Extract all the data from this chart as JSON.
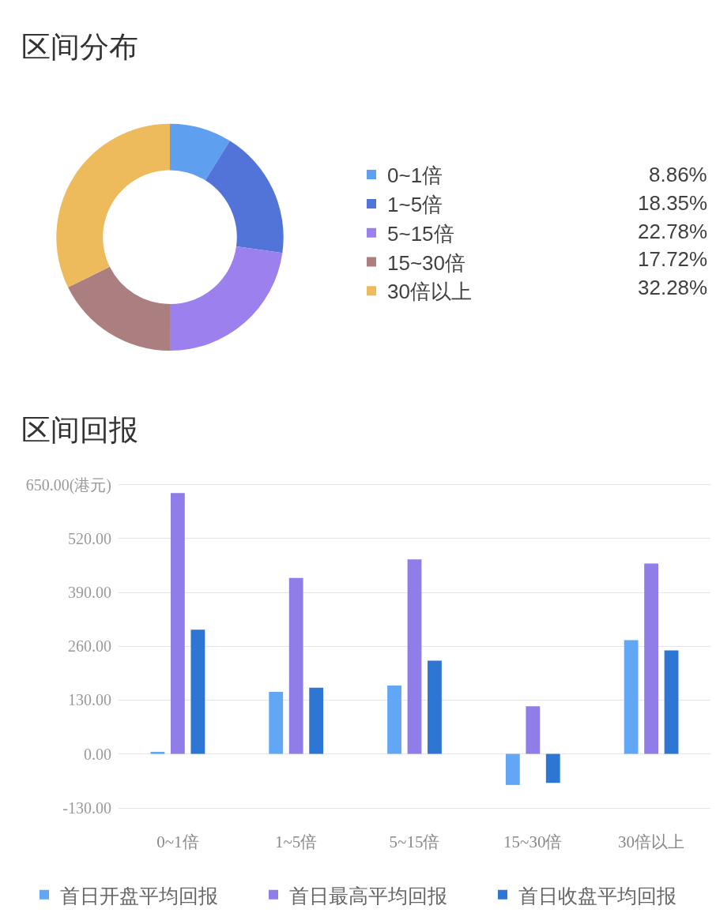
{
  "chart_data": [
    {
      "type": "donut",
      "title": "区间分布",
      "categories": [
        "0~1倍",
        "1~5倍",
        "5~15倍",
        "15~30倍",
        "30倍以上"
      ],
      "values": [
        8.86,
        18.35,
        22.78,
        17.72,
        32.28
      ],
      "colors": [
        "#5e9ff0",
        "#5274d9",
        "#9b80ee",
        "#ab7f7f",
        "#edbb5c"
      ],
      "value_labels": [
        "8.86%",
        "18.35%",
        "22.78%",
        "17.72%",
        "32.28%"
      ],
      "legend": "right"
    },
    {
      "type": "bar",
      "title": "区间回报",
      "categories": [
        "0~1倍",
        "1~5倍",
        "5~15倍",
        "15~30倍",
        "30倍以上"
      ],
      "series": [
        {
          "name": "首日开盘平均回报",
          "color": "#62a7f6",
          "values": [
            5,
            150,
            165,
            -75,
            275
          ]
        },
        {
          "name": "首日最高平均回报",
          "color": "#917de8",
          "values": [
            630,
            425,
            470,
            115,
            460
          ]
        },
        {
          "name": "首日收盘平均回报",
          "color": "#2e76d4",
          "values": [
            300,
            160,
            225,
            -70,
            250
          ]
        }
      ],
      "ylim": [
        -130,
        650
      ],
      "yticks": [
        {
          "value": -130,
          "label": "-130.00"
        },
        {
          "value": 0,
          "label": "0.00"
        },
        {
          "value": 130,
          "label": "130.00"
        },
        {
          "value": 260,
          "label": "260.00"
        },
        {
          "value": 390,
          "label": "390.00"
        },
        {
          "value": 520,
          "label": "520.00"
        },
        {
          "value": 650,
          "label": "650.00(港元)"
        }
      ],
      "grid": "y",
      "legend": "bottom"
    }
  ]
}
